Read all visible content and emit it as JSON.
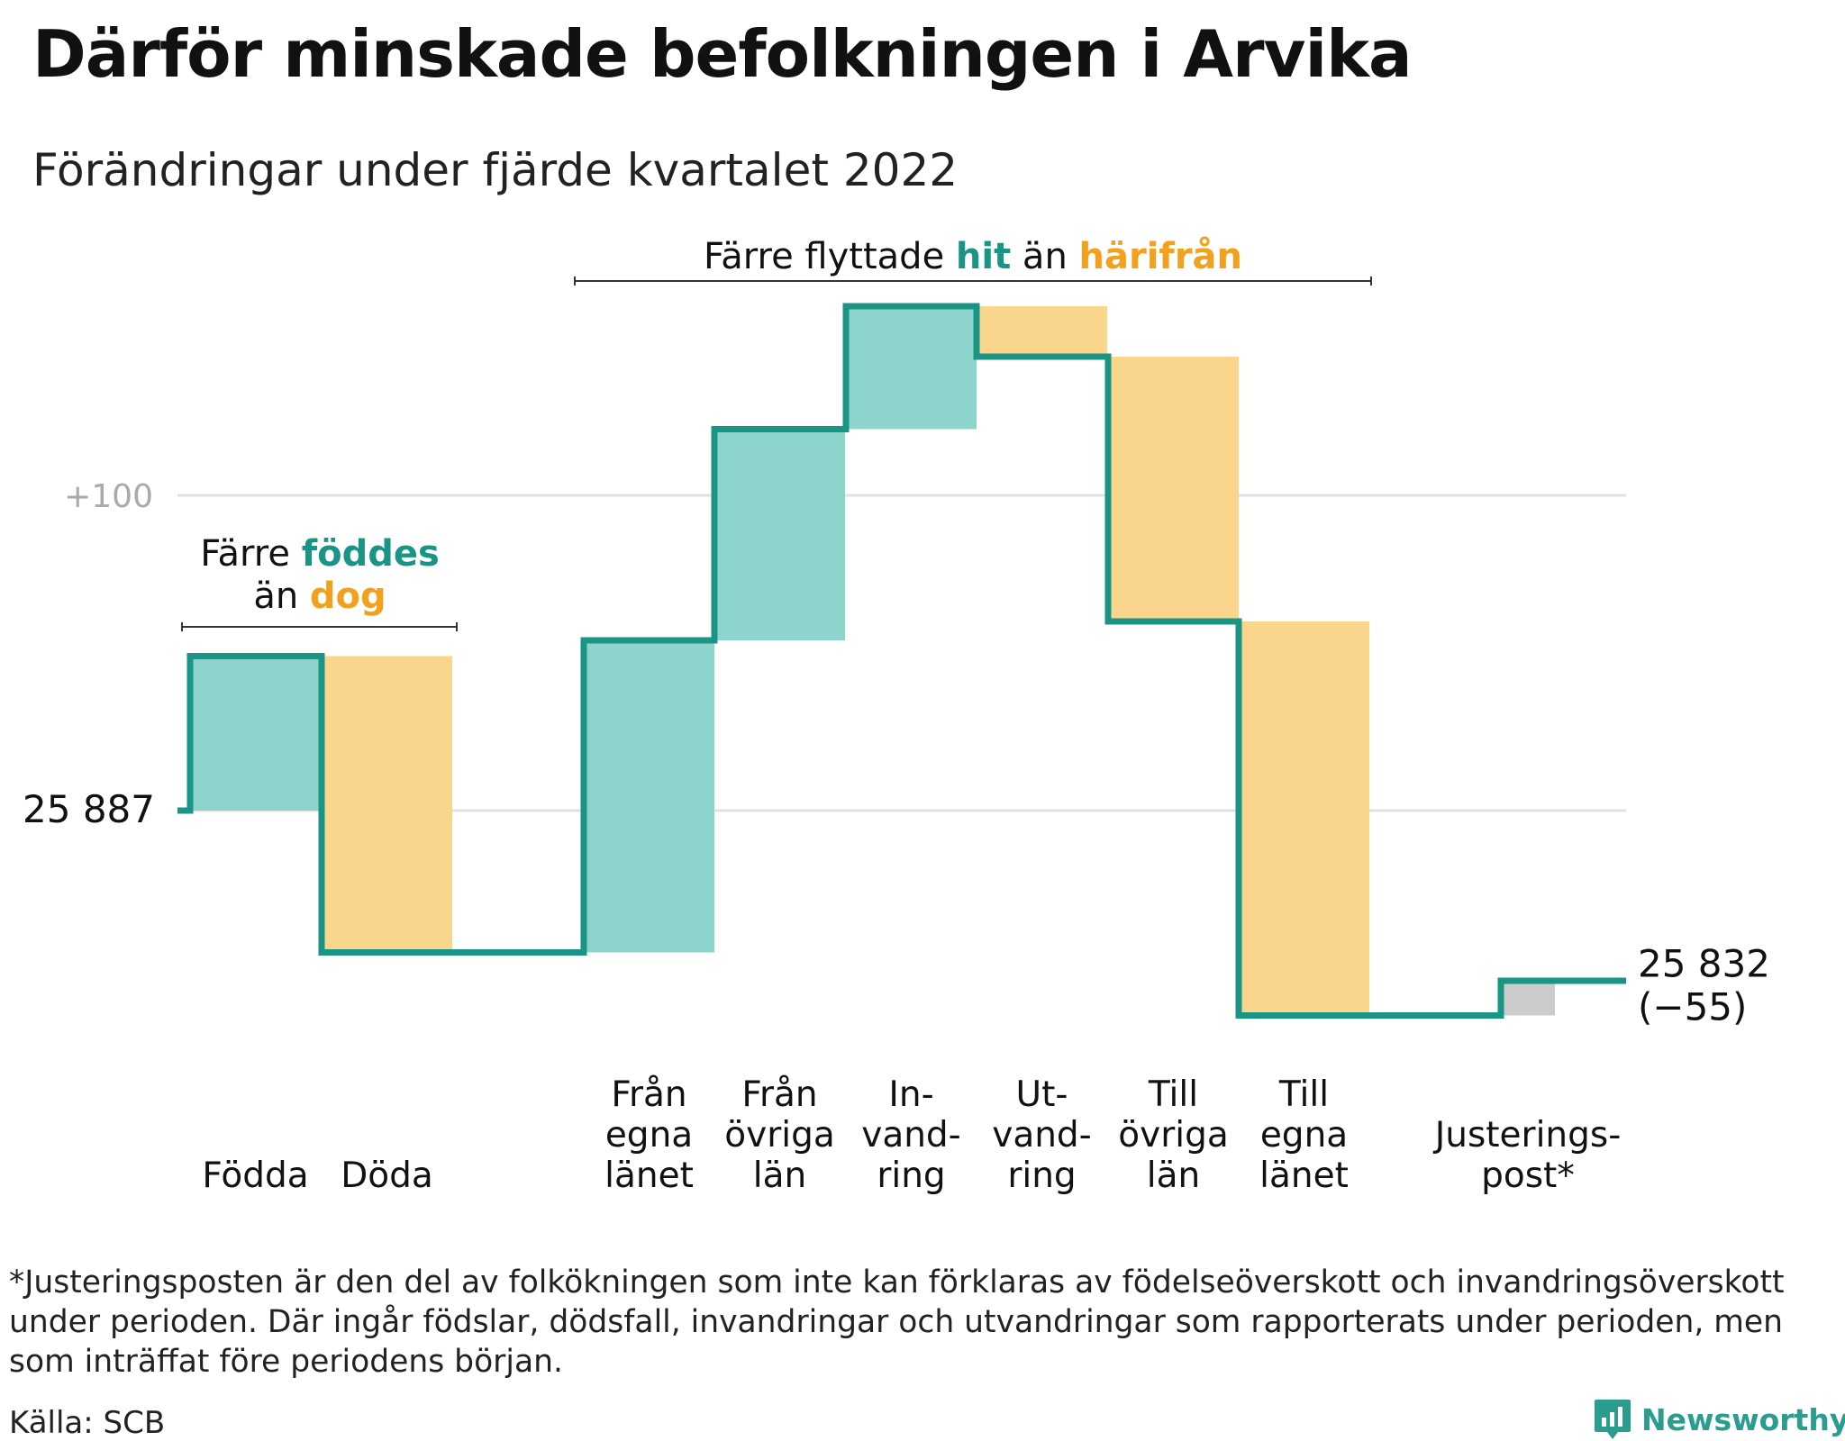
{
  "title": "Därför minskade befolkningen i Arvika",
  "subtitle": "Förändringar under fjärde kvartalet 2022",
  "footnote": "*Justeringsposten är den del av folkökningen som inte kan förklaras av födelseöverskott och invandringsöverskott under perioden. Där ingår födslar, dödsfall, invandringar och utvandringar som rapporterats under perioden, men som inträffat före periodens början.",
  "source": "Källa: SCB",
  "brand": "Newsworthy",
  "colors": {
    "increase": "#8dd5cc",
    "decrease": "#fad58c",
    "adjustment": "#cccccc",
    "line": "#1a9585",
    "teal_text": "#1a9585",
    "orange_text": "#f1a11e",
    "grid": "#e0e0e0",
    "gridlabel": "#aaaaaa"
  },
  "chart_data": {
    "type": "waterfall",
    "start": 25887,
    "end": 25832,
    "net_change": -55,
    "start_label": "25 887",
    "end_label": "25 832",
    "net_label": "(−55)",
    "gridlines": [
      {
        "value": 25887,
        "label": ""
      },
      {
        "value": 25987,
        "label": "+100"
      }
    ],
    "ylim": [
      25800,
      26050
    ],
    "steps": [
      {
        "label": [
          "Födda"
        ],
        "value": 49,
        "kind": "increase"
      },
      {
        "label": [
          "Döda"
        ],
        "value": -94,
        "kind": "decrease"
      },
      {
        "label": [
          "Från",
          "egna",
          "länet"
        ],
        "value": 99,
        "kind": "increase"
      },
      {
        "label": [
          "Från",
          "övriga",
          "län"
        ],
        "value": 67,
        "kind": "increase"
      },
      {
        "label": [
          "In-",
          "vand-",
          "ring"
        ],
        "value": 39,
        "kind": "increase"
      },
      {
        "label": [
          "Ut-",
          "vand-",
          "ring"
        ],
        "value": -16,
        "kind": "decrease"
      },
      {
        "label": [
          "Till",
          "övriga",
          "län"
        ],
        "value": -84,
        "kind": "decrease"
      },
      {
        "label": [
          "Till",
          "egna",
          "länet"
        ],
        "value": -125,
        "kind": "decrease"
      },
      {
        "label": [
          "Justerings-",
          "post*"
        ],
        "value": 11,
        "kind": "adjustment"
      }
    ],
    "annotations": [
      {
        "parts": [
          {
            "text": "Färre ",
            "style": "plain"
          },
          {
            "text": "föddes",
            "style": "teal"
          }
        ],
        "parts2": [
          {
            "text": "än ",
            "style": "plain"
          },
          {
            "text": "dog",
            "style": "orange"
          }
        ]
      },
      {
        "parts": [
          {
            "text": "Färre flyttade ",
            "style": "plain"
          },
          {
            "text": "hit",
            "style": "teal"
          },
          {
            "text": " än ",
            "style": "plain"
          },
          {
            "text": "härifrån",
            "style": "orange"
          }
        ]
      }
    ]
  }
}
